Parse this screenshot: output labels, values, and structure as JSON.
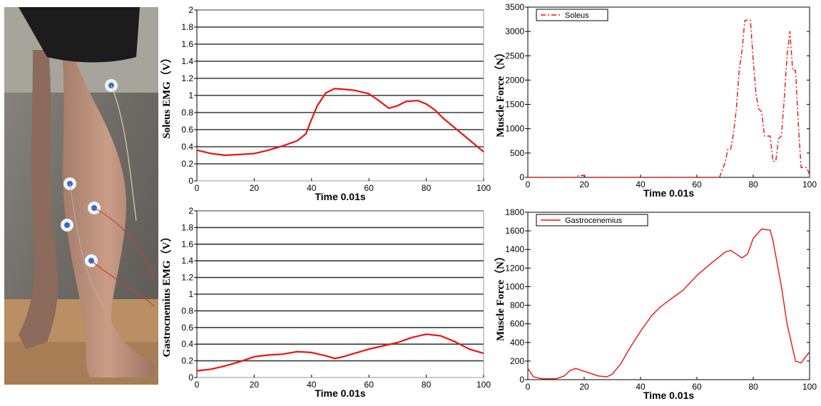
{
  "photo": {
    "icon": "leg-with-emg-electrodes-photo"
  },
  "chart_data": [
    {
      "id": "c1",
      "type": "line",
      "style": "excel",
      "ylabel": "Soleus EMG（V）",
      "xlabel": "Time   0.01s",
      "xlim": [
        0,
        100
      ],
      "ylim": [
        0,
        2
      ],
      "xticks": [
        0,
        20,
        40,
        60,
        80,
        100
      ],
      "yticks": [
        0,
        0.2,
        0.4,
        0.6,
        0.8,
        1,
        1.2,
        1.4,
        1.6,
        1.8,
        2
      ],
      "ytick_labels": [
        "0",
        "0.2",
        "0.4",
        "0.6",
        "0.8",
        "1",
        "1.2",
        "1.4",
        "1.6",
        "1.8",
        "2"
      ],
      "grid": true,
      "color": "#ee1111",
      "series": [
        {
          "x": [
            0,
            5,
            10,
            15,
            20,
            25,
            30,
            35,
            38,
            40,
            42,
            45,
            48,
            52,
            55,
            60,
            63,
            67,
            70,
            73,
            77,
            80,
            83,
            86,
            90,
            95,
            100
          ],
          "y": [
            0.36,
            0.32,
            0.3,
            0.31,
            0.32,
            0.36,
            0.41,
            0.47,
            0.55,
            0.72,
            0.88,
            1.03,
            1.08,
            1.07,
            1.06,
            1.02,
            0.95,
            0.85,
            0.88,
            0.93,
            0.94,
            0.9,
            0.83,
            0.73,
            0.62,
            0.48,
            0.34
          ]
        }
      ]
    },
    {
      "id": "c2",
      "type": "line",
      "style": "excel",
      "ylabel": "Gastrocnemius EMG（V）",
      "xlabel": "Time   0.01s",
      "xlim": [
        0,
        100
      ],
      "ylim": [
        0,
        2
      ],
      "xticks": [
        0,
        20,
        40,
        60,
        80,
        100
      ],
      "yticks": [
        0,
        0.2,
        0.4,
        0.6,
        0.8,
        1,
        1.2,
        1.4,
        1.6,
        1.8,
        2
      ],
      "ytick_labels": [
        "0",
        "0.2",
        "0.4",
        "0.6",
        "0.8",
        "1",
        "1.2",
        "1.4",
        "1.6",
        "1.8",
        "2"
      ],
      "grid": true,
      "color": "#ee1111",
      "series": [
        {
          "x": [
            0,
            5,
            10,
            15,
            20,
            25,
            30,
            35,
            40,
            45,
            48,
            50,
            55,
            60,
            65,
            70,
            75,
            80,
            85,
            90,
            95,
            100
          ],
          "y": [
            0.08,
            0.1,
            0.14,
            0.19,
            0.25,
            0.27,
            0.28,
            0.31,
            0.3,
            0.26,
            0.23,
            0.24,
            0.29,
            0.34,
            0.38,
            0.42,
            0.48,
            0.52,
            0.5,
            0.43,
            0.34,
            0.29
          ]
        }
      ]
    },
    {
      "id": "c3",
      "type": "line",
      "style": "matlab",
      "ylabel": "Muscle Force（N）",
      "xlabel": "Time   0.01s",
      "xlim": [
        0,
        100
      ],
      "ylim": [
        0,
        3500
      ],
      "xticks": [
        0,
        20,
        40,
        60,
        80,
        100
      ],
      "yticks": [
        0,
        500,
        1000,
        1500,
        2000,
        2500,
        3000,
        3500
      ],
      "ytick_labels": [
        "0",
        "500",
        "1000",
        "1500",
        "2000",
        "2500",
        "3000",
        "3500"
      ],
      "grid": false,
      "color": "#ee1111",
      "dash": "7 3 2 3",
      "legend": "top-left",
      "series": [
        {
          "name": "Soleus",
          "x": [
            0,
            17,
            18,
            20,
            21,
            30,
            50,
            68,
            70,
            71,
            72,
            73,
            74,
            75,
            76,
            77,
            78,
            79,
            80,
            81,
            82,
            83,
            84,
            85,
            86,
            87,
            88,
            89,
            90,
            91,
            92,
            93,
            94,
            95,
            96,
            97,
            98,
            99,
            100
          ],
          "y": [
            0,
            0,
            40,
            40,
            0,
            0,
            0,
            0,
            300,
            580,
            580,
            900,
            1400,
            2200,
            2600,
            3230,
            3230,
            3230,
            2400,
            1700,
            1400,
            1350,
            850,
            850,
            850,
            330,
            330,
            800,
            850,
            1600,
            2500,
            3000,
            2200,
            2200,
            1100,
            200,
            200,
            200,
            50
          ]
        }
      ]
    },
    {
      "id": "c4",
      "type": "line",
      "style": "matlab",
      "ylabel": "Muscle Force（N）",
      "xlabel": "Time   0.01s",
      "xlim": [
        0,
        100
      ],
      "ylim": [
        0,
        1800
      ],
      "xticks": [
        0,
        20,
        40,
        60,
        80,
        100
      ],
      "yticks": [
        0,
        200,
        400,
        600,
        800,
        1000,
        1200,
        1400,
        1600,
        1800
      ],
      "ytick_labels": [
        "0",
        "200",
        "400",
        "600",
        "800",
        "1000",
        "1200",
        "1400",
        "1600",
        "1800"
      ],
      "grid": false,
      "color": "#ee1111",
      "dash": "",
      "legend": "top-left",
      "series": [
        {
          "name": "Gastrocenemius",
          "x": [
            0,
            2,
            5,
            10,
            13,
            15,
            17,
            19,
            22,
            25,
            28,
            30,
            33,
            36,
            40,
            44,
            47,
            50,
            55,
            60,
            65,
            70,
            72,
            75,
            76,
            78,
            80,
            83,
            85,
            86,
            87,
            90,
            92,
            95,
            97,
            100
          ],
          "y": [
            120,
            30,
            10,
            10,
            40,
            100,
            120,
            100,
            70,
            40,
            30,
            60,
            170,
            330,
            520,
            690,
            780,
            850,
            960,
            1120,
            1250,
            1370,
            1390,
            1330,
            1310,
            1350,
            1520,
            1620,
            1610,
            1610,
            1500,
            1000,
            600,
            200,
            180,
            300
          ]
        }
      ]
    }
  ]
}
